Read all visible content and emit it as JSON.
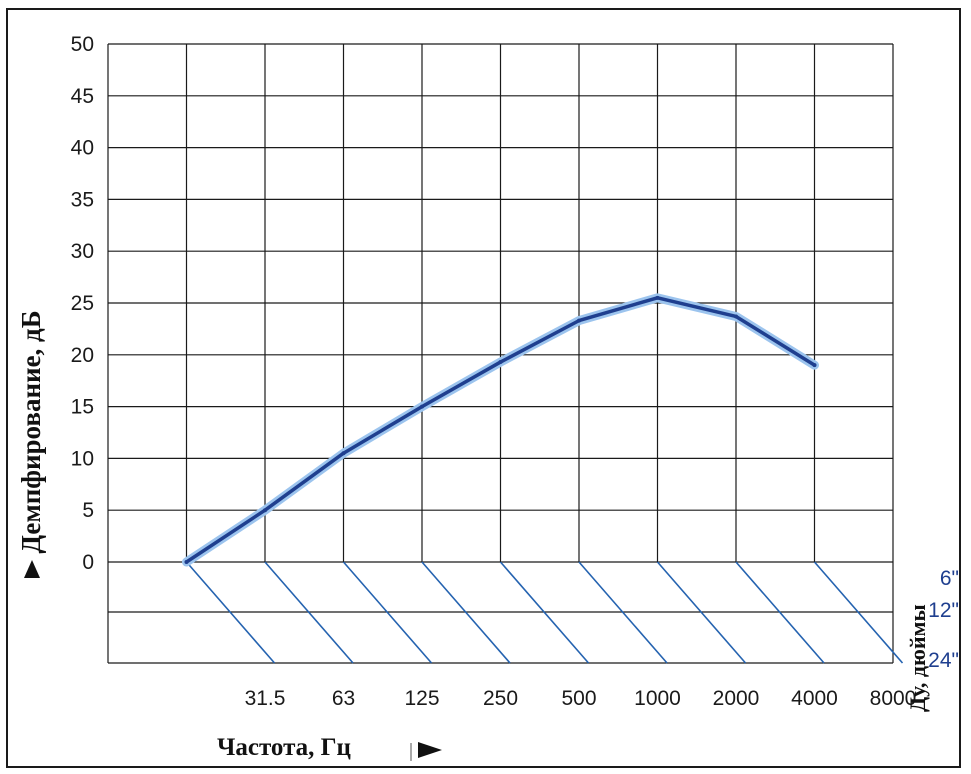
{
  "chart_data": {
    "type": "line",
    "title": "",
    "ylabel": "Демпфирование, дБ",
    "xlabel": "Частота, Гц",
    "y_ticks": [
      "0",
      "5",
      "10",
      "15",
      "20",
      "25",
      "30",
      "35",
      "40",
      "45",
      "50"
    ],
    "x_ticks": [
      "31.5",
      "63",
      "125",
      "250",
      "500",
      "1000",
      "2000",
      "4000",
      "8000"
    ],
    "ylim": [
      0,
      50
    ],
    "grid": true,
    "series": [
      {
        "x": [
          "31.5",
          "63",
          "125",
          "250",
          "500",
          "1000",
          "2000",
          "4000",
          "8000"
        ],
        "y": [
          0,
          5,
          10.5,
          15,
          19.3,
          23.3,
          25.5,
          23.7,
          19
        ]
      }
    ],
    "dn_axis": {
      "title": "Ду, дюймы",
      "labels": [
        "6\"",
        "12\"",
        "24\""
      ]
    },
    "colors": {
      "line": "#1f3f8f",
      "halo": "#9cc4ee",
      "grid": "#1a1a1a",
      "diagonal": "#2563b0"
    }
  }
}
